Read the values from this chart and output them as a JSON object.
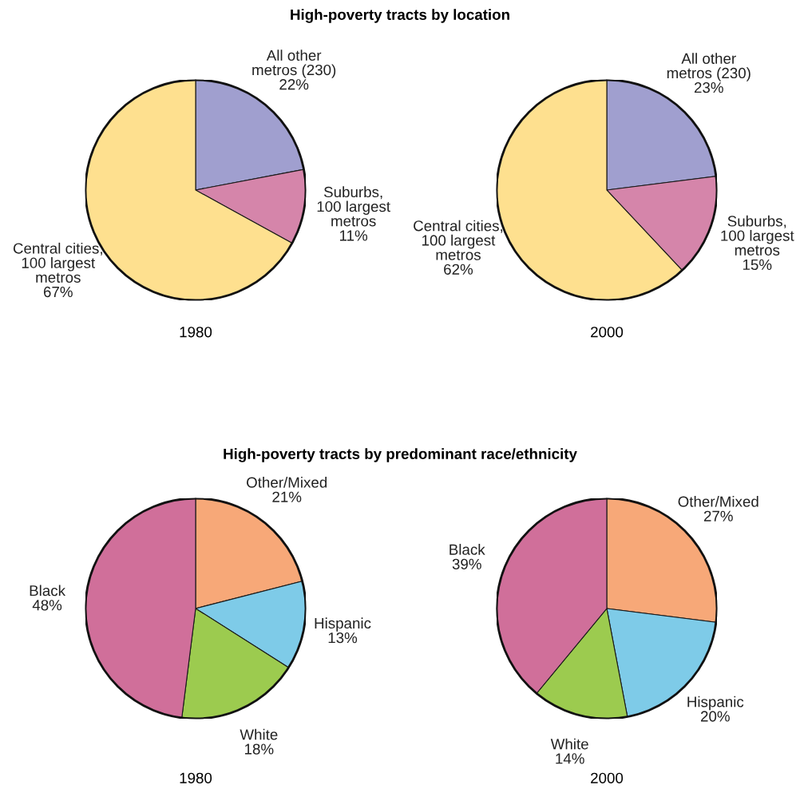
{
  "chart_data": [
    {
      "type": "pie",
      "title": "High-poverty tracts by location",
      "xlabel": "1980",
      "categories": [
        "All other\nmetros (230)",
        "Suburbs,\n100 largest\nmetros",
        "Central cities,\n100 largest\nmetros"
      ],
      "values": [
        22,
        11,
        67
      ],
      "value_labels": [
        "22%",
        "11%",
        "67%"
      ],
      "colors": [
        "#a09fcf",
        "#d585aa",
        "#fee08f"
      ]
    },
    {
      "type": "pie",
      "xlabel": "2000",
      "categories": [
        "All other\nmetros (230)",
        "Suburbs,\n100 largest\nmetros",
        "Central cities,\n100 largest\nmetros"
      ],
      "values": [
        23,
        15,
        62
      ],
      "value_labels": [
        "23%",
        "15%",
        "62%"
      ],
      "colors": [
        "#a09fcf",
        "#d585aa",
        "#fee08f"
      ]
    },
    {
      "type": "pie",
      "title": "High-poverty tracts by predominant race/ethnicity",
      "xlabel": "1980",
      "categories": [
        "Other/Mixed",
        "Hispanic",
        "White",
        "Black"
      ],
      "values": [
        21,
        13,
        18,
        48
      ],
      "value_labels": [
        "21%",
        "13%",
        "18%",
        "48%"
      ],
      "colors": [
        "#f7a878",
        "#7ecbe8",
        "#9ccb4f",
        "#d06f9a"
      ]
    },
    {
      "type": "pie",
      "xlabel": "2000",
      "categories": [
        "Other/Mixed",
        "Hispanic",
        "White",
        "Black"
      ],
      "values": [
        27,
        20,
        14,
        39
      ],
      "value_labels": [
        "27%",
        "20%",
        "14%",
        "39%"
      ],
      "colors": [
        "#f7a878",
        "#7ecbe8",
        "#9ccb4f",
        "#d06f9a"
      ]
    }
  ]
}
